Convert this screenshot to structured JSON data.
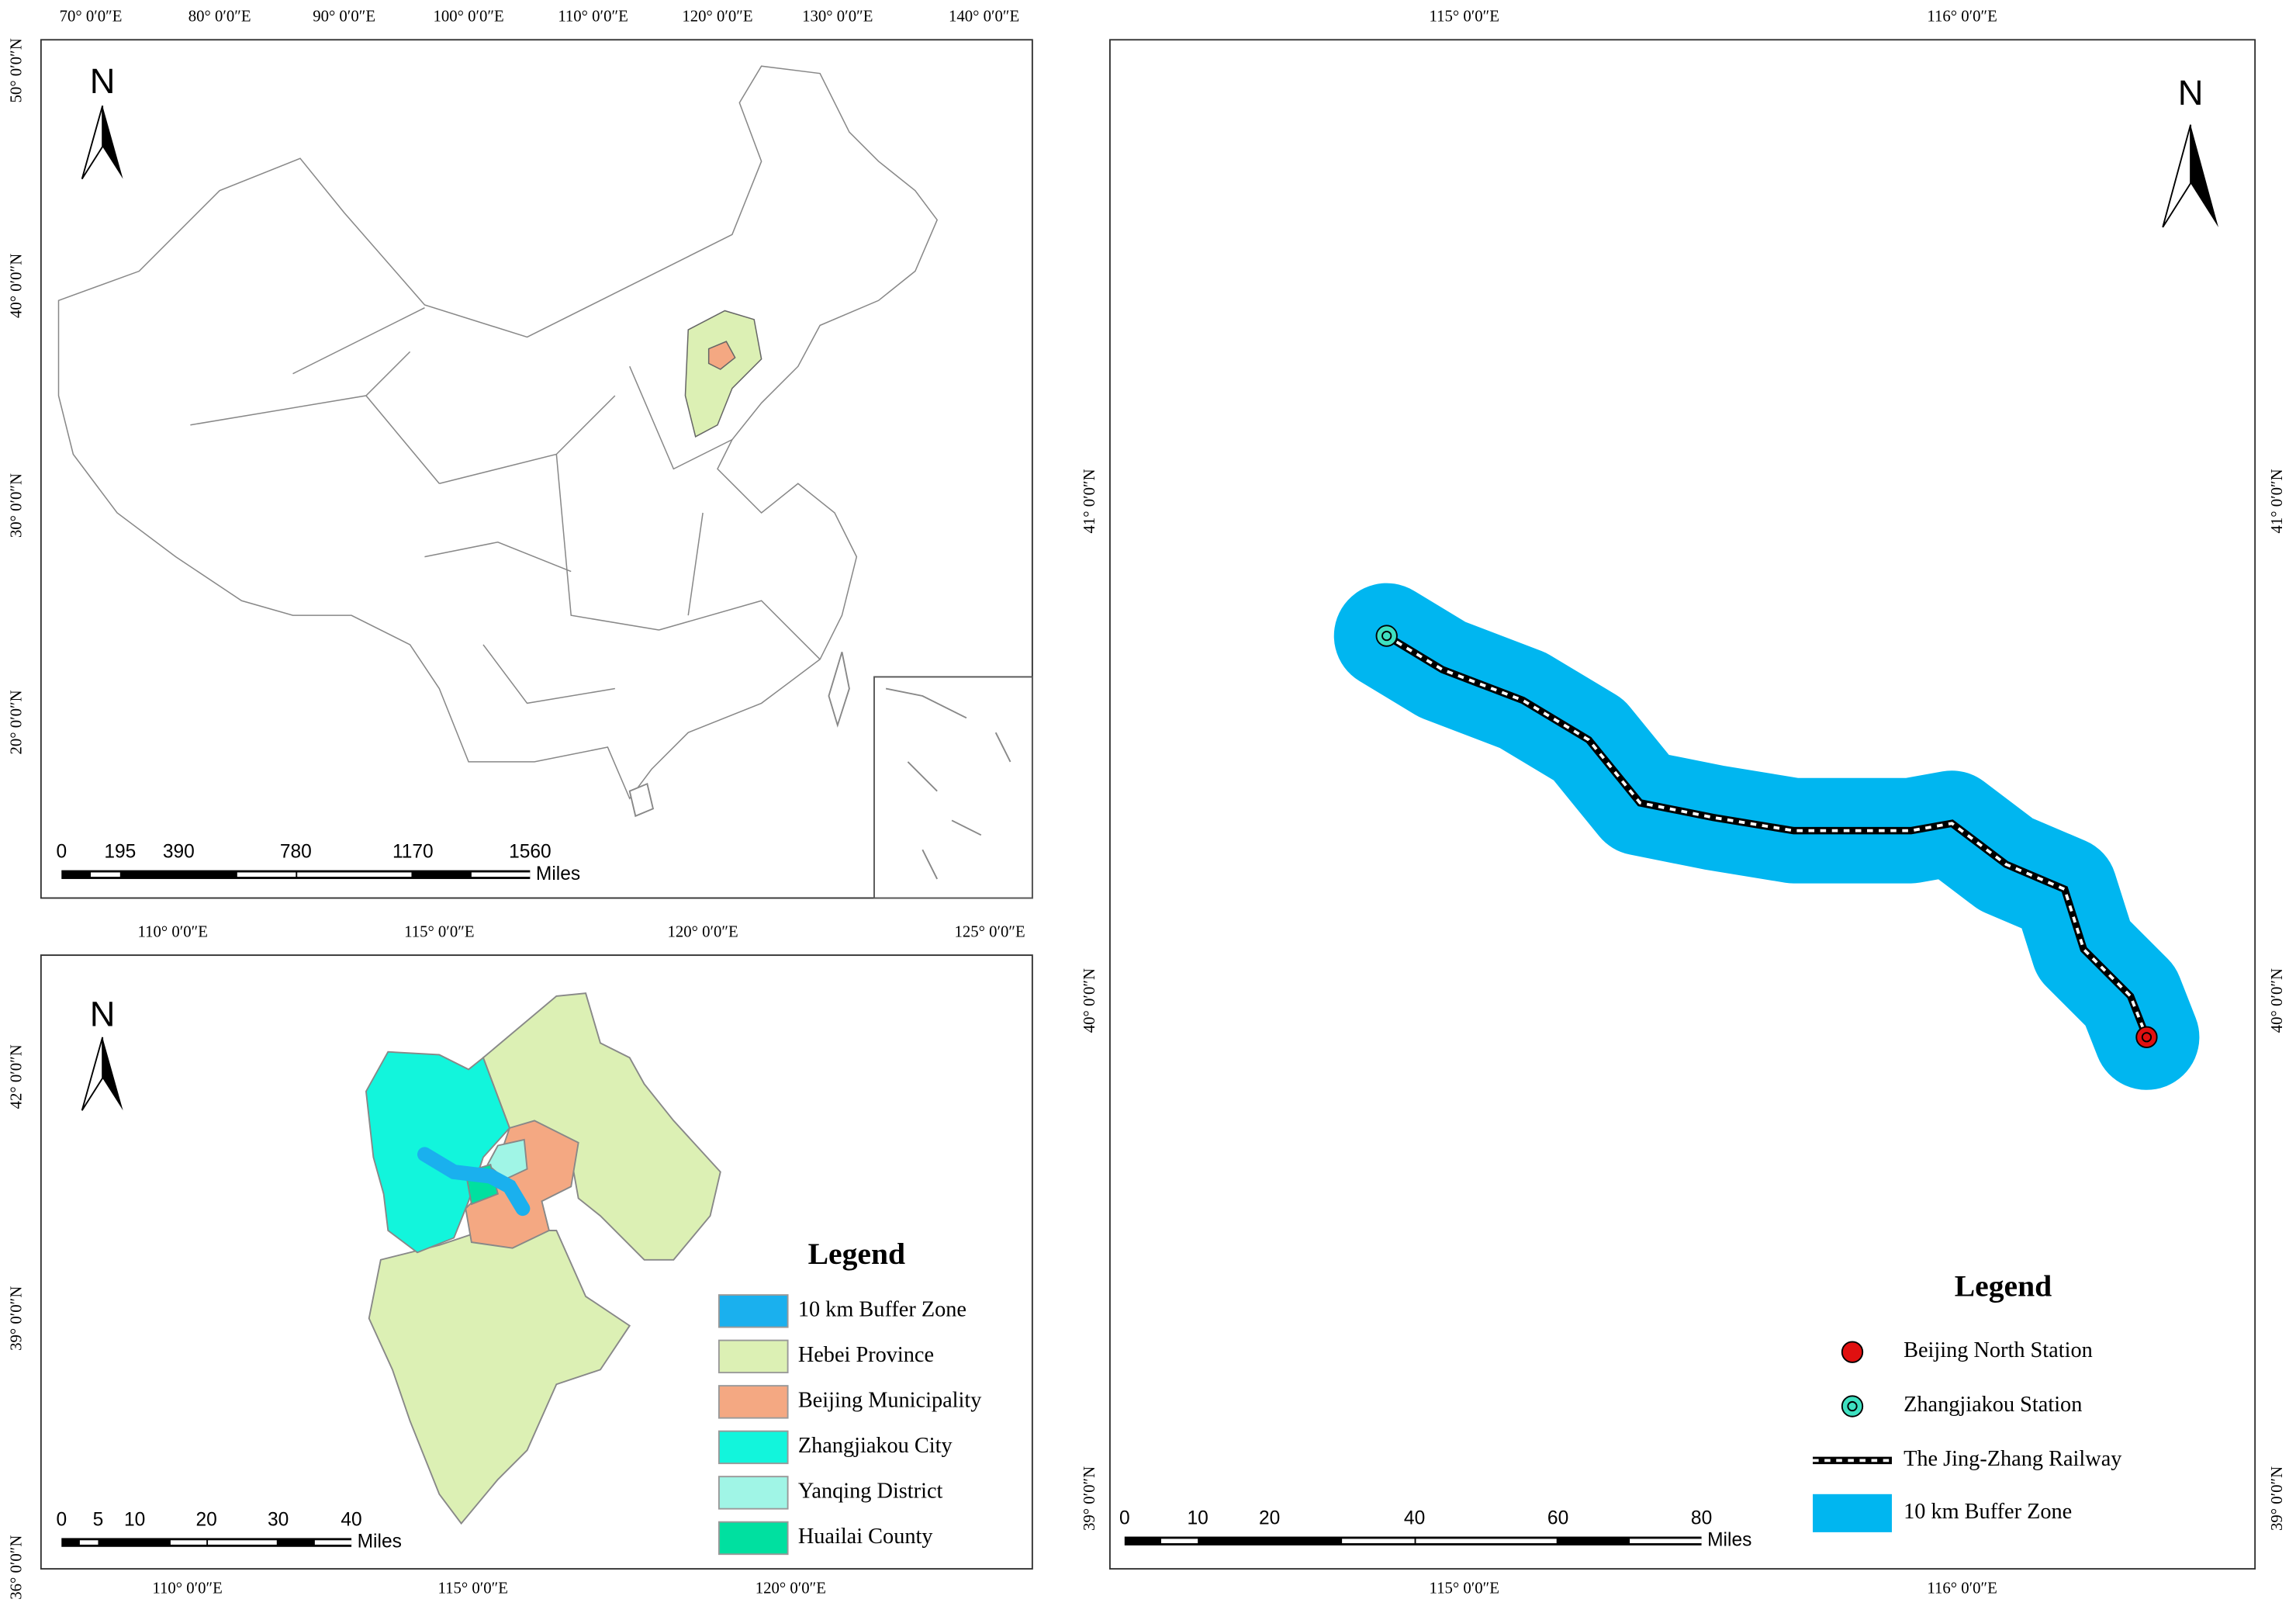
{
  "panels": [
    {
      "top_labels": [
        "70° 0′0″E",
        "80° 0′0″E",
        "90° 0′0″E",
        "100° 0′0″E",
        "110° 0′0″E",
        "120° 0′0″E",
        "130° 0′0″E",
        "140° 0′0″E"
      ],
      "left_labels": [
        "50° 0′0″N",
        "40° 0′0″N",
        "30° 0′0″N",
        "20° 0′0″N"
      ],
      "north": "N",
      "scale_labels": [
        "0",
        "195",
        "390",
        "780",
        "1170",
        "1560"
      ],
      "scale_unit": "Miles"
    },
    {
      "top_labels": [
        "110° 0′0″E",
        "115° 0′0″E",
        "120° 0′0″E",
        "125° 0′0″E"
      ],
      "bottom_labels": [
        "110° 0′0″E",
        "115° 0′0″E",
        "120° 0′0″E"
      ],
      "left_labels": [
        "42° 0′0″N",
        "39° 0′0″N",
        "36° 0′0″N"
      ],
      "north": "N",
      "scale_labels": [
        "0",
        "5",
        "10",
        "20",
        "30",
        "40"
      ],
      "scale_unit": "Miles",
      "legend": {
        "title": "Legend",
        "items": [
          "10 km Buffer Zone",
          "Hebei Province",
          "Beijing Municipality",
          "Zhangjiakou City",
          "Yanqing District",
          "Huailai County"
        ]
      }
    },
    {
      "top_labels": [
        "115° 0′0″E",
        "116° 0′0″E"
      ],
      "bottom_labels": [
        "115° 0′0″E",
        "116° 0′0″E"
      ],
      "left_labels": [
        "41° 0′0″N",
        "40° 0′0″N",
        "39° 0′0″N"
      ],
      "right_labels": [
        "41° 0′0″N",
        "40° 0′0″N",
        "39° 0′0″N"
      ],
      "north": "N",
      "scale_labels": [
        "0",
        "10",
        "20",
        "40",
        "60",
        "80"
      ],
      "scale_unit": "Miles",
      "legend": {
        "title": "Legend",
        "items": [
          "Beijing North Station",
          "Zhangjiakou Station",
          "The Jing-Zhang Railway",
          "10 km Buffer Zone"
        ]
      }
    }
  ]
}
